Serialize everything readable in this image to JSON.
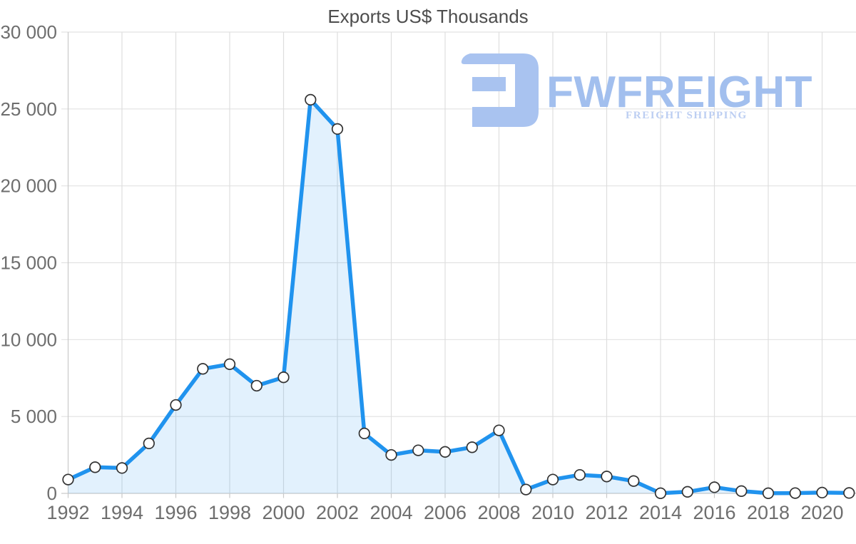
{
  "chart_data": {
    "type": "area",
    "title": "Exports US$ Thousands",
    "x": [
      1992,
      1993,
      1994,
      1995,
      1996,
      1997,
      1998,
      1999,
      2000,
      2001,
      2002,
      2003,
      2004,
      2005,
      2006,
      2007,
      2008,
      2009,
      2010,
      2011,
      2012,
      2013,
      2014,
      2015,
      2016,
      2017,
      2018,
      2019,
      2020,
      2021
    ],
    "series": [
      {
        "name": "Exports US$ Thousands",
        "values": [
          900,
          1700,
          1650,
          3250,
          5750,
          8100,
          8400,
          7000,
          7550,
          25600,
          23700,
          3900,
          2500,
          2800,
          2700,
          3000,
          4100,
          250,
          900,
          1200,
          1100,
          800,
          10,
          100,
          400,
          150,
          10,
          20,
          50,
          30
        ]
      }
    ],
    "xlabel": "",
    "ylabel": "",
    "ylim": [
      0,
      30000
    ],
    "y_ticks": [
      0,
      5000,
      10000,
      15000,
      20000,
      25000,
      30000
    ],
    "y_tick_labels": [
      "0",
      "5 000",
      "10 000",
      "15 000",
      "20 000",
      "25 000",
      "30 000"
    ],
    "x_ticks": [
      1992,
      1994,
      1996,
      1998,
      2000,
      2002,
      2004,
      2006,
      2008,
      2010,
      2012,
      2014,
      2016,
      2018,
      2020
    ],
    "x_tick_labels": [
      "1992",
      "1994",
      "1996",
      "1998",
      "2000",
      "2002",
      "2004",
      "2006",
      "2008",
      "2010",
      "2012",
      "2014",
      "2016",
      "2018",
      "2020"
    ],
    "grid": true,
    "legend": false,
    "marker": "circle"
  },
  "style": {
    "line_color": "#2093ee",
    "area_fill": "rgba(33,148,240,0.13)",
    "marker_fill": "#ffffff",
    "marker_stroke": "#333333",
    "grid_color": "#e2e2e2",
    "vgrid_color": "#dedede",
    "axis_color": "#c9c9c9",
    "title_color": "#4d4d4d",
    "tick_label_color": "#6e6e6e",
    "logo_icon_color": "#a9c3f0",
    "logo_brand_color": "#a2bfee",
    "logo_tagline_color": "#bccef2"
  },
  "watermark": {
    "brand": "FWFREIGHT",
    "tagline": "FREIGHT SHIPPING"
  }
}
